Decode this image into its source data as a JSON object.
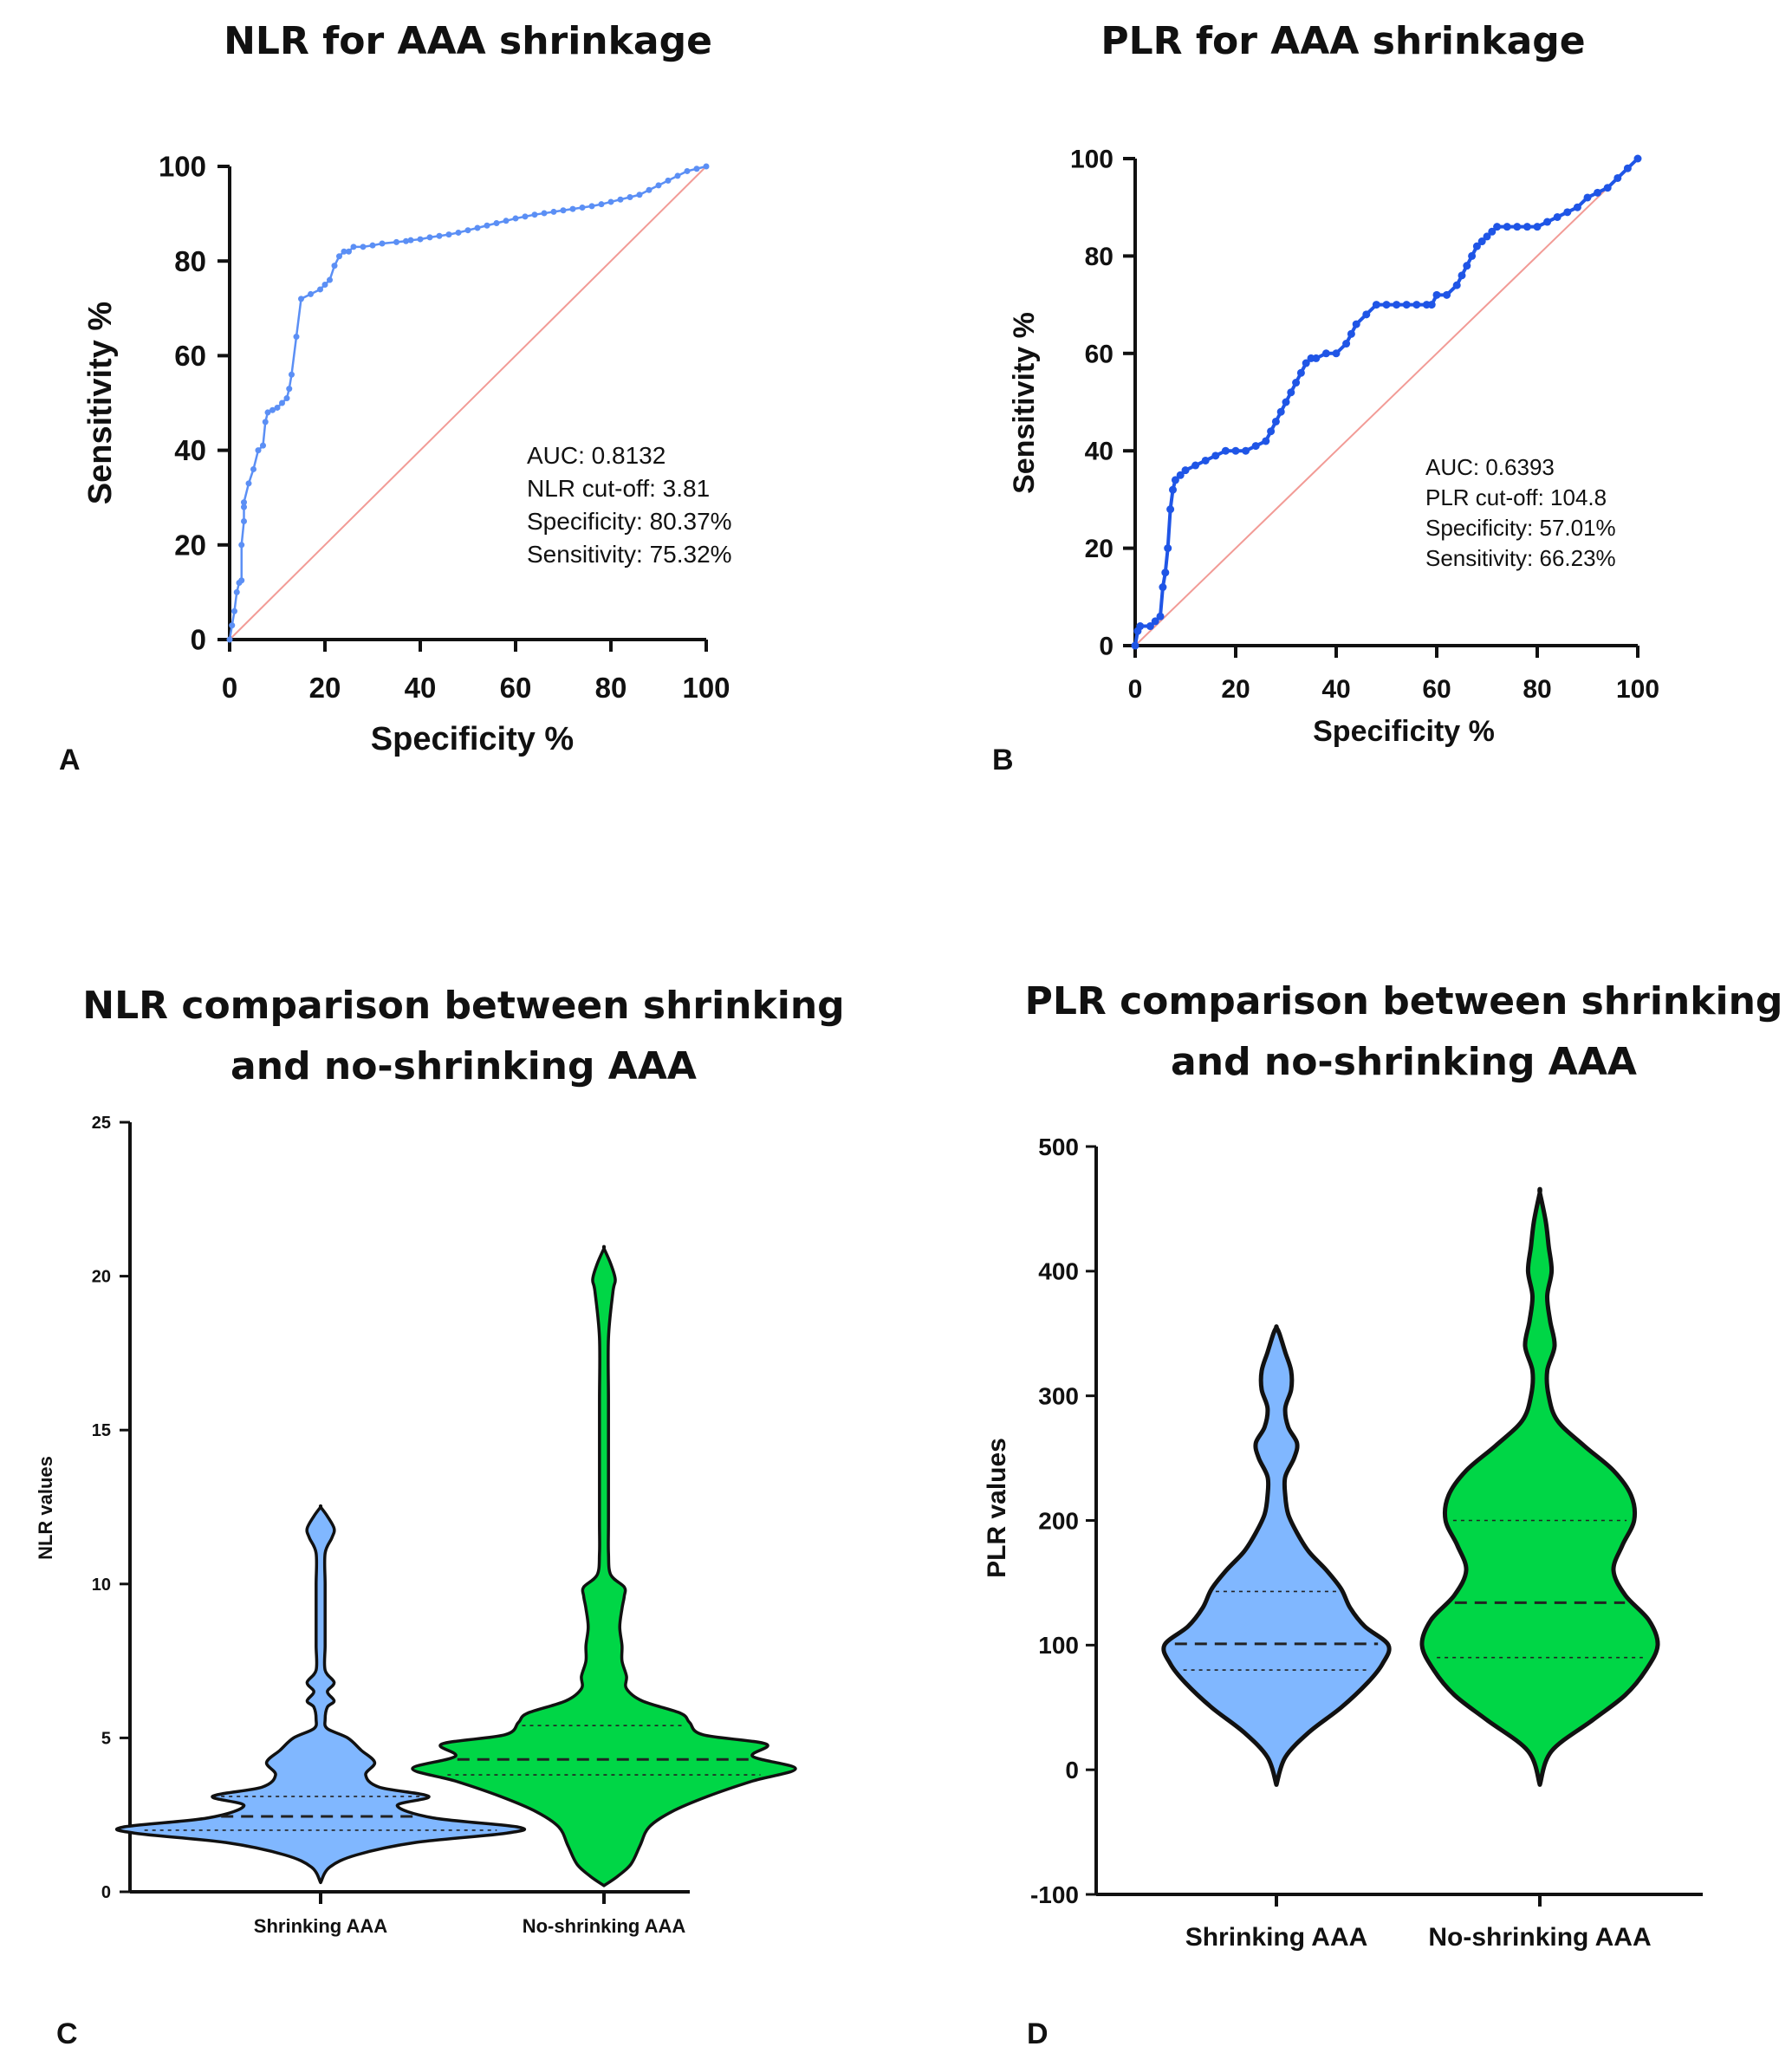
{
  "chart_data": [
    {
      "id": "A",
      "type": "line",
      "title": "NLR for AAA shrinkage",
      "xlabel": "Specificity %",
      "ylabel": "Sensitivity %",
      "panel_label": "A",
      "xlim": [
        0,
        100
      ],
      "ylim": [
        0,
        100
      ],
      "xticks": [
        "0",
        "20",
        "40",
        "60",
        "80",
        "100"
      ],
      "yticks": [
        "0",
        "20",
        "40",
        "60",
        "80",
        "100"
      ],
      "annotations": [
        "AUC: 0.8132",
        "NLR cut-off: 3.81",
        "Specificity: 80.37%",
        "Sensitivity: 75.32%"
      ],
      "series": [
        {
          "name": "ROC",
          "color": "#5b8ff5",
          "x": [
            0,
            0.5,
            1,
            1.5,
            2,
            2.5,
            2.5,
            3,
            3,
            3,
            4,
            5,
            6,
            7,
            7.5,
            8,
            9,
            10,
            11,
            12,
            12.5,
            13,
            14,
            15,
            17,
            19,
            20,
            21,
            22,
            23,
            24,
            25,
            26,
            28,
            30,
            32,
            35,
            37,
            38,
            40,
            42,
            44,
            46,
            48,
            50,
            52,
            54,
            56,
            58,
            60,
            62,
            64,
            66,
            68,
            70,
            72,
            74,
            76,
            78,
            80,
            82,
            84,
            86,
            88,
            90,
            92,
            94,
            96,
            98,
            100
          ],
          "y": [
            0,
            3,
            6,
            10,
            12,
            12.5,
            20,
            25,
            28,
            29,
            33,
            36,
            40,
            41,
            46,
            48,
            48.5,
            49,
            50,
            51,
            53,
            56,
            64,
            72,
            73,
            74,
            75,
            76,
            79,
            81,
            82,
            82,
            83,
            83,
            83.3,
            83.7,
            84,
            84.2,
            84.4,
            84.6,
            85,
            85.3,
            85.6,
            86,
            86.5,
            87,
            87.5,
            88,
            88.5,
            89,
            89.4,
            89.8,
            90.1,
            90.4,
            90.7,
            91,
            91.3,
            91.6,
            92,
            92.5,
            93,
            93.5,
            94,
            95,
            96,
            97,
            98,
            99,
            99.5,
            100
          ]
        },
        {
          "name": "Reference",
          "color": "#f29b96",
          "x": [
            0,
            100
          ],
          "y": [
            0,
            100
          ]
        }
      ]
    },
    {
      "id": "B",
      "type": "line",
      "title": "PLR for AAA shrinkage",
      "xlabel": "Specificity %",
      "ylabel": "Sensitivity %",
      "panel_label": "B",
      "xlim": [
        0,
        100
      ],
      "ylim": [
        0,
        100
      ],
      "xticks": [
        "0",
        "20",
        "40",
        "60",
        "80",
        "100"
      ],
      "yticks": [
        "0",
        "20",
        "40",
        "60",
        "80",
        "100"
      ],
      "annotations": [
        "AUC: 0.6393",
        "PLR cut-off: 104.8",
        "Specificity: 57.01%",
        "Sensitivity: 66.23%"
      ],
      "series": [
        {
          "name": "ROC",
          "color": "#1f55e6",
          "x": [
            0,
            0.5,
            1,
            3,
            4,
            5,
            5.5,
            6,
            6.5,
            7,
            7.5,
            8,
            9,
            10,
            12,
            14,
            16,
            18,
            20,
            22,
            24,
            26,
            27,
            28,
            29,
            30,
            31,
            32,
            33,
            34,
            35,
            36,
            38,
            40,
            42,
            43,
            44,
            46,
            48,
            50,
            52,
            54,
            56,
            58,
            59,
            60,
            62,
            64,
            65,
            66,
            67,
            68,
            69,
            70,
            71,
            72,
            74,
            76,
            78,
            80,
            82,
            84,
            86,
            88,
            90,
            92,
            94,
            96,
            98,
            100
          ],
          "y": [
            0,
            3,
            4,
            4,
            5,
            6,
            12,
            15,
            20,
            28,
            32,
            34,
            35,
            36,
            37,
            38,
            39,
            40,
            40,
            40,
            41,
            42,
            44,
            46,
            48,
            50,
            52,
            54,
            56,
            58,
            59,
            59,
            60,
            60,
            62,
            64,
            66,
            68,
            70,
            70,
            70,
            70,
            70,
            70,
            70,
            72,
            72,
            74,
            76,
            78,
            80,
            82,
            83,
            84,
            85,
            86,
            86,
            86,
            86,
            86,
            87,
            88,
            89,
            90,
            92,
            93,
            94,
            96,
            98,
            100
          ]
        },
        {
          "name": "Reference",
          "color": "#f29b96",
          "x": [
            0,
            100
          ],
          "y": [
            0,
            100
          ]
        }
      ]
    },
    {
      "id": "C",
      "type": "violin",
      "title": "NLR comparison between shrinking and no-shrinking AAA",
      "title_lines": [
        "NLR comparison between shrinking",
        "and no-shrinking AAA"
      ],
      "xlabel": "",
      "ylabel": "NLR values",
      "panel_label": "C",
      "ylim": [
        0,
        25
      ],
      "yticks": [
        "0",
        "5",
        "10",
        "15",
        "20",
        "25"
      ],
      "categories": [
        "Shrinking AAA",
        "No-shrinking AAA"
      ],
      "series": [
        {
          "name": "Shrinking AAA",
          "color": "#80b7ff",
          "median": 2.45,
          "q1": 2.0,
          "q3": 3.1,
          "y": [
            0.3,
            0.8,
            1.2,
            1.6,
            1.9,
            2.1,
            2.4,
            2.8,
            3.1,
            3.4,
            3.8,
            4.2,
            4.6,
            5.0,
            5.3,
            5.6,
            6.0,
            6.2,
            6.5,
            6.8,
            7.2,
            8,
            9,
            10,
            11,
            11.5,
            11.8,
            12.2,
            12.5
          ],
          "halfwidth": [
            0,
            0.04,
            0.16,
            0.42,
            0.82,
            0.88,
            0.5,
            0.34,
            0.48,
            0.26,
            0.2,
            0.24,
            0.18,
            0.12,
            0.03,
            0.02,
            0.03,
            0.06,
            0.03,
            0.06,
            0.02,
            0.02,
            0.02,
            0.02,
            0.02,
            0.05,
            0.06,
            0.03,
            0
          ]
        },
        {
          "name": "No-shrinking AAA",
          "color": "#00d646",
          "median": 4.3,
          "q1": 3.8,
          "q3": 5.4,
          "y": [
            0.2,
            0.5,
            0.9,
            1.5,
            2.1,
            2.6,
            3.1,
            3.6,
            4.0,
            4.4,
            4.8,
            5.1,
            5.5,
            5.8,
            6.2,
            6.6,
            7.0,
            7.5,
            8.0,
            8.6,
            9.2,
            9.6,
            9.9,
            10.3,
            11,
            12,
            14,
            16,
            18,
            19.5,
            19.9,
            20.4,
            20.9
          ],
          "halfwidth": [
            0,
            0.06,
            0.12,
            0.16,
            0.2,
            0.3,
            0.46,
            0.66,
            0.85,
            0.66,
            0.72,
            0.44,
            0.38,
            0.34,
            0.17,
            0.1,
            0.1,
            0.08,
            0.08,
            0.07,
            0.08,
            0.09,
            0.09,
            0.03,
            0.02,
            0.02,
            0.02,
            0.02,
            0.02,
            0.04,
            0.05,
            0.03,
            0
          ]
        }
      ]
    },
    {
      "id": "D",
      "type": "violin",
      "title": "PLR comparison between shrinking and no-shrinking AAA",
      "title_lines": [
        "PLR comparison between shrinking",
        "and no-shrinking AAA"
      ],
      "xlabel": "",
      "ylabel": "PLR values",
      "panel_label": "D",
      "ylim": [
        -100,
        500
      ],
      "yticks": [
        "-100",
        "0",
        "100",
        "200",
        "300",
        "400",
        "500"
      ],
      "categories": [
        "Shrinking AAA",
        "No-shrinking AAA"
      ],
      "series": [
        {
          "name": "Shrinking AAA",
          "color": "#80b7ff",
          "median": 101,
          "q1": 80,
          "q3": 143,
          "y": [
            -12,
            10,
            30,
            50,
            70,
            85,
            100,
            115,
            130,
            145,
            160,
            175,
            190,
            205,
            220,
            235,
            250,
            262,
            275,
            290,
            305,
            320,
            335,
            350,
            355
          ],
          "halfwidth": [
            0,
            0.06,
            0.22,
            0.44,
            0.62,
            0.72,
            0.76,
            0.6,
            0.5,
            0.44,
            0.34,
            0.22,
            0.14,
            0.08,
            0.06,
            0.06,
            0.12,
            0.14,
            0.08,
            0.06,
            0.1,
            0.1,
            0.06,
            0.02,
            0
          ]
        },
        {
          "name": "No-shrinking AAA",
          "color": "#00d646",
          "median": 134,
          "q1": 90,
          "q3": 200,
          "y": [
            -12,
            15,
            40,
            60,
            80,
            100,
            120,
            140,
            160,
            180,
            200,
            220,
            240,
            260,
            280,
            300,
            320,
            340,
            360,
            380,
            400,
            420,
            440,
            463
          ],
          "halfwidth": [
            0,
            0.08,
            0.36,
            0.58,
            0.72,
            0.8,
            0.74,
            0.58,
            0.5,
            0.56,
            0.64,
            0.62,
            0.5,
            0.3,
            0.12,
            0.06,
            0.05,
            0.1,
            0.07,
            0.05,
            0.08,
            0.06,
            0.04,
            0
          ]
        }
      ]
    }
  ]
}
